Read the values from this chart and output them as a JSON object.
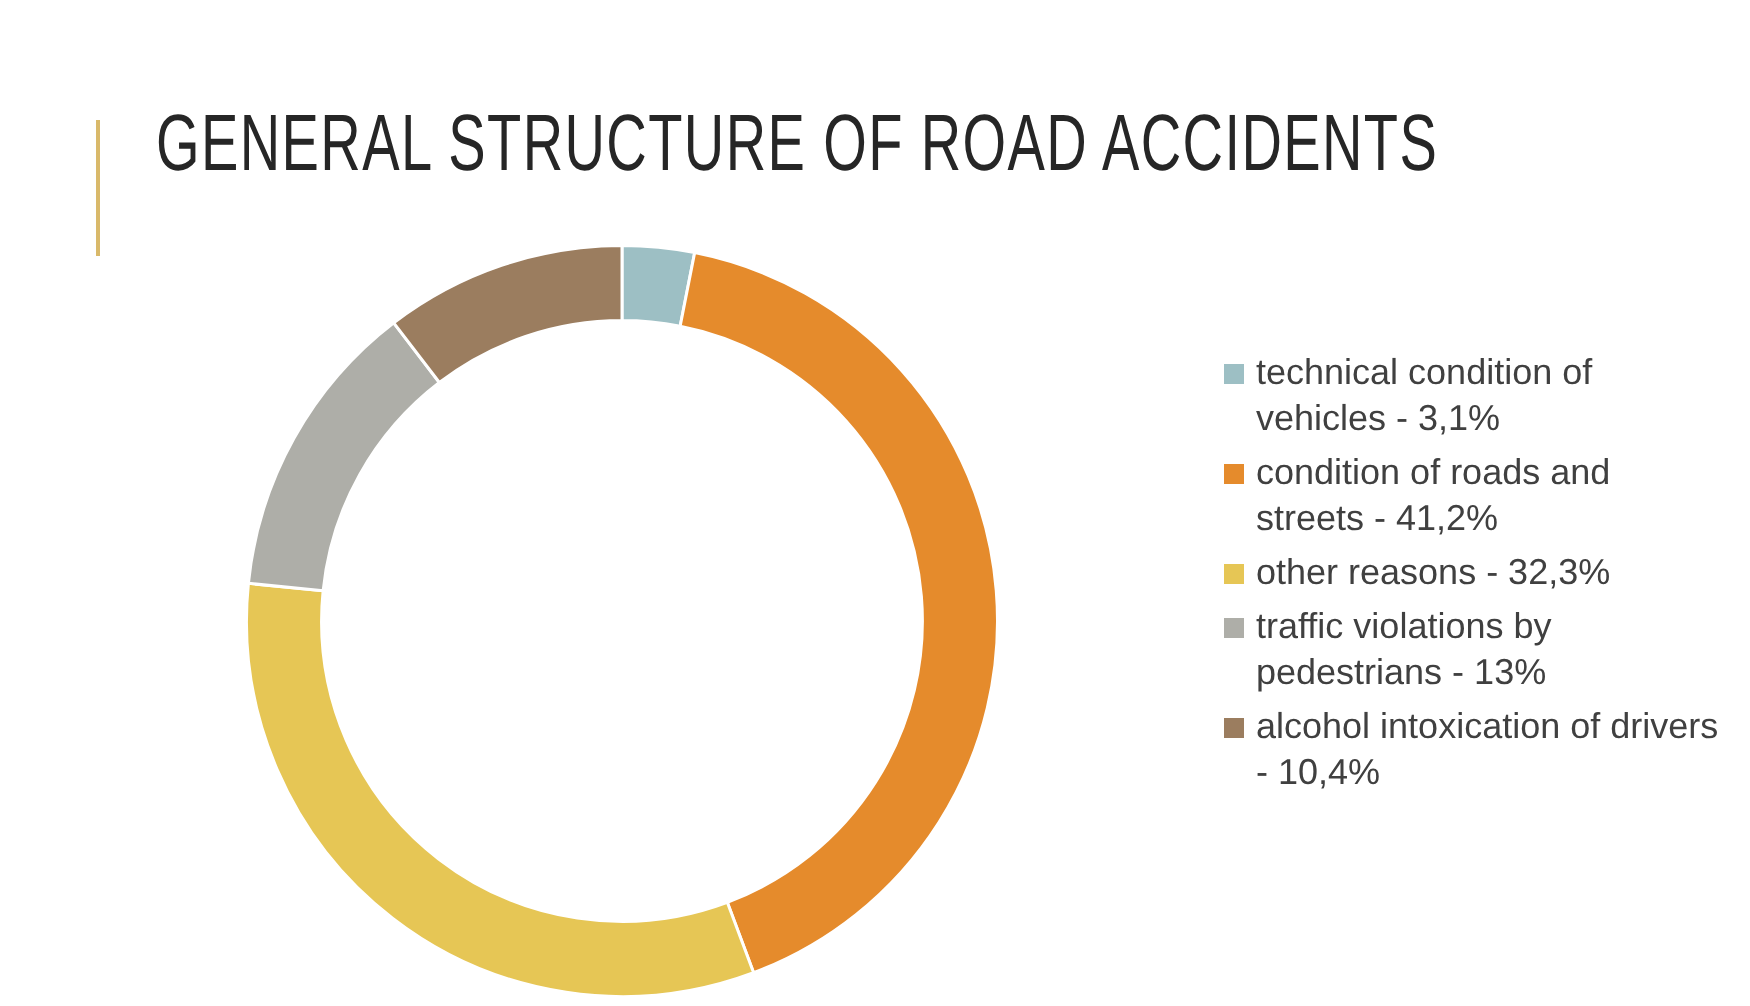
{
  "chart_data": {
    "type": "donut",
    "title": "GENERAL STRUCTURE OF ROAD ACCIDENTS",
    "categories": [
      "technical condition of vehicles - 3,1%",
      "condition of roads and streets - 41,2%",
      "other reasons - 32,3%",
      "traffic violations by pedestrians - 13%",
      "alcohol intoxication of drivers - 10,4%"
    ],
    "values": [
      3.1,
      41.2,
      32.3,
      13,
      10.4
    ],
    "colors": [
      "#9dbfc4",
      "#e58b2c",
      "#e6c655",
      "#aeaea8",
      "#9b7d5f"
    ],
    "legend": "right"
  }
}
